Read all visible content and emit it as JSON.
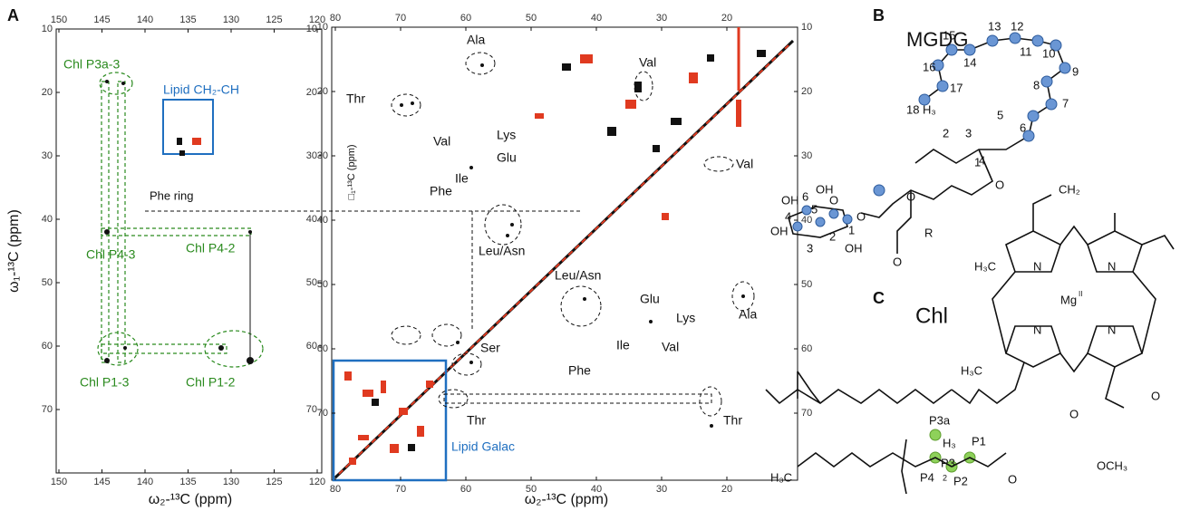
{
  "figure": {
    "panel_a": {
      "label": "A",
      "left_plot": {
        "xticks": [
          150,
          145,
          140,
          135,
          130,
          125,
          120
        ],
        "yticks": [
          10,
          20,
          30,
          40,
          50,
          60,
          70
        ],
        "x_label": "ω₂-¹³C (ppm)",
        "y_label": "ω₁-¹³C (ppm)",
        "annotations": [
          "Chl P3a-3",
          "Lipid CH₂-CH",
          "Phe ring",
          "Chl P4-3",
          "Chl P4-2",
          "Chl P1-3",
          "Chl P1-2"
        ]
      },
      "right_plot": {
        "xticks": [
          80,
          70,
          60,
          50,
          40,
          30,
          20
        ],
        "yticks": [
          10,
          20,
          30,
          40,
          50,
          60,
          70
        ],
        "x_label": "ω₂-¹³C (ppm)",
        "y_label": "□₁-¹³C (ppm)",
        "annotations": [
          "Thr",
          "Ala",
          "Val",
          "Val",
          "Lys",
          "Glu",
          "Val",
          "Phe",
          "Ile",
          "Leu/Asn",
          "Leu/Asn",
          "Glu",
          "Lys",
          "Ala",
          "Ser",
          "Phe",
          "Ile",
          "Val",
          "Thr",
          "Thr",
          "Lipid Galac"
        ]
      }
    },
    "panel_b": {
      "label": "B",
      "title": "MGDG",
      "chain_numbers": [
        "1",
        "2",
        "3",
        "4",
        "5",
        "6",
        "7",
        "8",
        "9",
        "10",
        "11",
        "12",
        "13",
        "14",
        "15",
        "16",
        "17",
        "18"
      ],
      "h3": "H₃",
      "sugar_labels": [
        "OH",
        "6",
        "OH",
        "4",
        "5",
        "O",
        "1",
        "2",
        "3",
        "OH",
        "OH",
        "O",
        "O",
        "R",
        "O",
        "O"
      ]
    },
    "panel_c": {
      "label": "C",
      "title": "Chl",
      "labels": [
        "P3a",
        "P1",
        "P4",
        "P3",
        "P2",
        "2",
        "Mg",
        "II",
        "N",
        "N",
        "N",
        "N",
        "H₃C",
        "H₃C",
        "H₃C",
        "OCH₃",
        "O",
        "O",
        "O",
        "H₃",
        "CH₂"
      ]
    }
  }
}
